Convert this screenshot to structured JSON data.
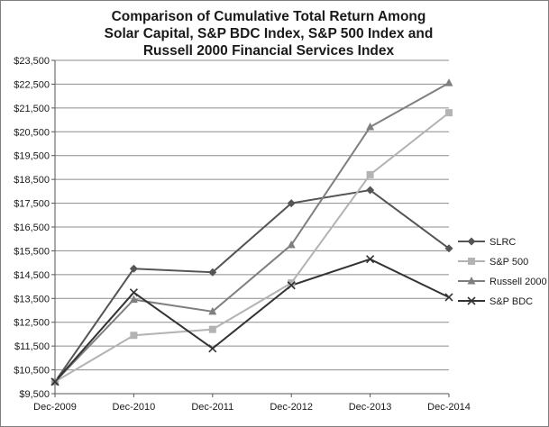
{
  "chart_data": {
    "type": "line",
    "title": [
      "Comparison of Cumulative Total Return Among",
      "Solar Capital, S&P BDC Index, S&P 500 Index and",
      "Russell 2000 Financial Services Index"
    ],
    "xlabel": "",
    "ylabel": "",
    "categories": [
      "Dec-2009",
      "Dec-2010",
      "Dec-2011",
      "Dec-2012",
      "Dec-2013",
      "Dec-2014"
    ],
    "ylim": [
      9500,
      23500
    ],
    "ytick_values": [
      9500,
      10500,
      11500,
      12500,
      13500,
      14500,
      15500,
      16500,
      17500,
      18500,
      19500,
      20500,
      21500,
      22500,
      23500
    ],
    "ytick_labels": [
      "$9,500",
      "$10,500",
      "$11,500",
      "$12,500",
      "$13,500",
      "$14,500",
      "$15,500",
      "$16,500",
      "$17,500",
      "$18,500",
      "$19,500",
      "$20,500",
      "$21,500",
      "$22,500",
      "$23,500"
    ],
    "grid": "horizontal",
    "legend_position": "right",
    "series": [
      {
        "name": "SLRC",
        "values": [
          10000,
          14750,
          14600,
          17500,
          18050,
          15600
        ],
        "color": "#555555",
        "marker": "diamond"
      },
      {
        "name": "S&P 500",
        "values": [
          10000,
          11950,
          12200,
          14150,
          18700,
          21300
        ],
        "color": "#b3b3b3",
        "marker": "square"
      },
      {
        "name": "Russell 2000",
        "values": [
          10000,
          13450,
          12950,
          15750,
          20700,
          22550
        ],
        "color": "#7f7f7f",
        "marker": "triangle"
      },
      {
        "name": "S&P BDC",
        "values": [
          10000,
          13750,
          11400,
          14050,
          15150,
          13550
        ],
        "color": "#333333",
        "marker": "x"
      }
    ]
  }
}
